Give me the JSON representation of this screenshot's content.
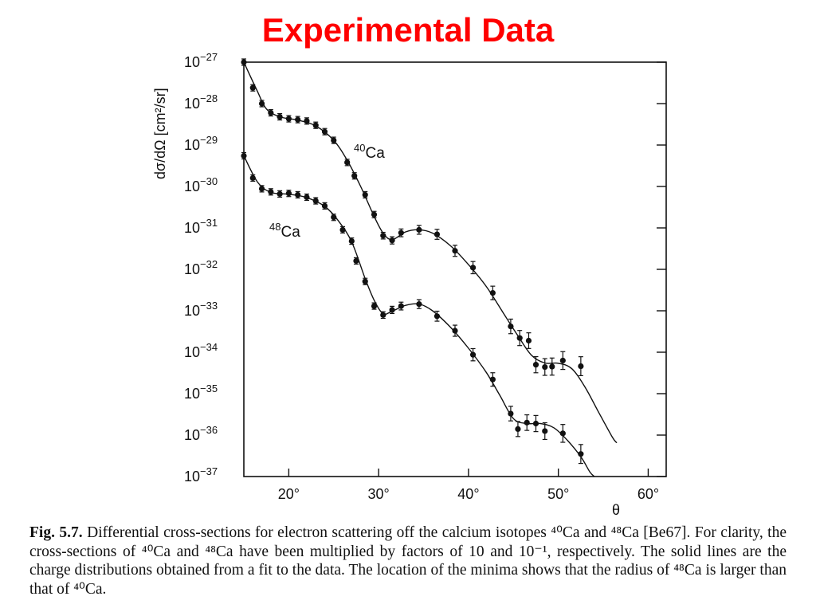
{
  "title": "Experimental Data",
  "caption": {
    "label": "Fig. 5.7.",
    "text": "Differential cross-sections for electron scattering off the calcium isotopes ⁴⁰Ca and ⁴⁸Ca [Be67]. For clarity, the cross-sections of ⁴⁰Ca and ⁴⁸Ca have been multiplied by factors of 10 and 10⁻¹, respectively. The solid lines are the charge distributions obtained from a fit to the data. The location of the minima shows that the radius of ⁴⁸Ca is larger than that of ⁴⁰Ca."
  },
  "chart_data": {
    "type": "scatter",
    "title": "Experimental Data",
    "xlabel": "θ",
    "ylabel": "dσ/dΩ [cm²/sr]",
    "xlim": [
      15,
      62
    ],
    "ylim_log10": [
      -37,
      -27
    ],
    "yscale": "log",
    "x_ticks": [
      20,
      30,
      40,
      50,
      60
    ],
    "x_tick_labels": [
      "20°",
      "30°",
      "40°",
      "50°",
      "60°"
    ],
    "y_ticks_log10": [
      -27,
      -28,
      -29,
      -30,
      -31,
      -32,
      -33,
      -34,
      -35,
      -36,
      -37
    ],
    "y_tick_labels": [
      {
        "base": "10",
        "exp": "−27"
      },
      {
        "base": "10",
        "exp": "−28"
      },
      {
        "base": "10",
        "exp": "−29"
      },
      {
        "base": "10",
        "exp": "−30"
      },
      {
        "base": "10",
        "exp": "−31"
      },
      {
        "base": "10",
        "exp": "−32"
      },
      {
        "base": "10",
        "exp": "−33"
      },
      {
        "base": "10",
        "exp": "−34"
      },
      {
        "base": "10",
        "exp": "−35"
      },
      {
        "base": "10",
        "exp": "−36"
      },
      {
        "base": "10",
        "exp": "−37"
      }
    ],
    "grid": false,
    "series": [
      {
        "name": "⁴⁰Ca",
        "label_mass": "40",
        "label_element": "Ca",
        "points": [
          {
            "x": 15.0,
            "y": 1e-27
          },
          {
            "x": 16.0,
            "y": 2.4e-28
          },
          {
            "x": 17.0,
            "y": 1e-28
          },
          {
            "x": 18.0,
            "y": 6e-29
          },
          {
            "x": 19.0,
            "y": 4.8e-29
          },
          {
            "x": 20.0,
            "y": 4.3e-29
          },
          {
            "x": 21.0,
            "y": 4.1e-29
          },
          {
            "x": 22.0,
            "y": 3.8e-29
          },
          {
            "x": 23.0,
            "y": 3e-29
          },
          {
            "x": 24.0,
            "y": 2.1e-29
          },
          {
            "x": 25.0,
            "y": 1.3e-29
          },
          {
            "x": 26.5,
            "y": 3.8e-30
          },
          {
            "x": 27.3,
            "y": 1.8e-30
          },
          {
            "x": 28.5,
            "y": 6.3e-31
          },
          {
            "x": 29.5,
            "y": 2.1e-31
          },
          {
            "x": 30.5,
            "y": 6.5e-32
          },
          {
            "x": 31.5,
            "y": 5e-32
          },
          {
            "x": 32.5,
            "y": 7.6e-32
          },
          {
            "x": 34.5,
            "y": 9e-32
          },
          {
            "x": 36.5,
            "y": 7e-32
          },
          {
            "x": 38.5,
            "y": 2.8e-32
          },
          {
            "x": 40.5,
            "y": 1.1e-32
          },
          {
            "x": 42.7,
            "y": 2.7e-33
          },
          {
            "x": 44.7,
            "y": 4.2e-34
          },
          {
            "x": 45.7,
            "y": 2.2e-34
          },
          {
            "x": 46.7,
            "y": 1.9e-34
          },
          {
            "x": 47.5,
            "y": 5e-35
          },
          {
            "x": 48.5,
            "y": 4.4e-35
          },
          {
            "x": 49.3,
            "y": 4.5e-35
          },
          {
            "x": 50.5,
            "y": 6.3e-35
          },
          {
            "x": 52.5,
            "y": 4.6e-35
          }
        ],
        "fit": [
          {
            "x": 15.0,
            "y": 1e-27
          },
          {
            "x": 16.5,
            "y": 2e-28
          },
          {
            "x": 17.5,
            "y": 7.5e-29
          },
          {
            "x": 19.0,
            "y": 4.8e-29
          },
          {
            "x": 21.0,
            "y": 4e-29
          },
          {
            "x": 23.0,
            "y": 2.9e-29
          },
          {
            "x": 25.0,
            "y": 1.3e-29
          },
          {
            "x": 26.5,
            "y": 4.3e-30
          },
          {
            "x": 28.0,
            "y": 1e-30
          },
          {
            "x": 29.5,
            "y": 1.9e-31
          },
          {
            "x": 30.5,
            "y": 7.5e-32
          },
          {
            "x": 31.5,
            "y": 5.2e-32
          },
          {
            "x": 33.0,
            "y": 8e-32
          },
          {
            "x": 34.5,
            "y": 9e-32
          },
          {
            "x": 36.0,
            "y": 7.5e-32
          },
          {
            "x": 38.0,
            "y": 3.7e-32
          },
          {
            "x": 40.0,
            "y": 1.3e-32
          },
          {
            "x": 42.0,
            "y": 3.8e-33
          },
          {
            "x": 44.0,
            "y": 8e-34
          },
          {
            "x": 45.5,
            "y": 2.5e-34
          },
          {
            "x": 47.0,
            "y": 8.5e-35
          },
          {
            "x": 48.5,
            "y": 5.5e-35
          },
          {
            "x": 50.0,
            "y": 5.4e-35
          },
          {
            "x": 51.5,
            "y": 4e-35
          },
          {
            "x": 53.0,
            "y": 1.4e-35
          },
          {
            "x": 54.5,
            "y": 3.5e-36
          },
          {
            "x": 56.0,
            "y": 9e-37
          },
          {
            "x": 56.5,
            "y": 6.5e-37
          }
        ]
      },
      {
        "name": "⁴⁸Ca",
        "label_mass": "48",
        "label_element": "Ca",
        "points": [
          {
            "x": 15.0,
            "y": 5.5e-30
          },
          {
            "x": 16.0,
            "y": 1.6e-30
          },
          {
            "x": 17.0,
            "y": 8.8e-31
          },
          {
            "x": 18.0,
            "y": 7.4e-31
          },
          {
            "x": 19.0,
            "y": 6.6e-31
          },
          {
            "x": 20.0,
            "y": 6.8e-31
          },
          {
            "x": 21.0,
            "y": 6.3e-31
          },
          {
            "x": 22.0,
            "y": 5.5e-31
          },
          {
            "x": 23.0,
            "y": 4.5e-31
          },
          {
            "x": 24.0,
            "y": 3.4e-31
          },
          {
            "x": 25.0,
            "y": 1.8e-31
          },
          {
            "x": 26.0,
            "y": 9e-32
          },
          {
            "x": 27.0,
            "y": 4.8e-32
          },
          {
            "x": 27.5,
            "y": 1.6e-32
          },
          {
            "x": 28.5,
            "y": 5.1e-33
          },
          {
            "x": 29.5,
            "y": 1.3e-33
          },
          {
            "x": 30.5,
            "y": 7.9e-34
          },
          {
            "x": 31.5,
            "y": 1.05e-33
          },
          {
            "x": 32.5,
            "y": 1.3e-33
          },
          {
            "x": 34.5,
            "y": 1.45e-33
          },
          {
            "x": 36.5,
            "y": 7.4e-34
          },
          {
            "x": 38.5,
            "y": 3.3e-34
          },
          {
            "x": 40.5,
            "y": 8.7e-35
          },
          {
            "x": 42.7,
            "y": 2.2e-35
          },
          {
            "x": 44.7,
            "y": 3.3e-36
          },
          {
            "x": 45.5,
            "y": 1.4e-36
          },
          {
            "x": 46.5,
            "y": 2e-36
          },
          {
            "x": 47.5,
            "y": 1.9e-36
          },
          {
            "x": 48.5,
            "y": 1.25e-36
          },
          {
            "x": 50.5,
            "y": 1.1e-36
          },
          {
            "x": 52.5,
            "y": 3.5e-37
          }
        ],
        "fit": [
          {
            "x": 15.0,
            "y": 5.5e-30
          },
          {
            "x": 16.5,
            "y": 1.3e-30
          },
          {
            "x": 18.0,
            "y": 7.2e-31
          },
          {
            "x": 20.0,
            "y": 6.5e-31
          },
          {
            "x": 22.0,
            "y": 5.4e-31
          },
          {
            "x": 24.0,
            "y": 3.3e-31
          },
          {
            "x": 25.5,
            "y": 1.5e-31
          },
          {
            "x": 27.0,
            "y": 4.6e-32
          },
          {
            "x": 28.5,
            "y": 6e-33
          },
          {
            "x": 29.5,
            "y": 1.8e-33
          },
          {
            "x": 30.5,
            "y": 8.5e-34
          },
          {
            "x": 31.5,
            "y": 9.8e-34
          },
          {
            "x": 33.0,
            "y": 1.35e-33
          },
          {
            "x": 34.5,
            "y": 1.45e-33
          },
          {
            "x": 36.0,
            "y": 1e-33
          },
          {
            "x": 38.0,
            "y": 4e-34
          },
          {
            "x": 40.0,
            "y": 1.25e-34
          },
          {
            "x": 42.0,
            "y": 3.2e-35
          },
          {
            "x": 43.5,
            "y": 9e-36
          },
          {
            "x": 45.0,
            "y": 2.5e-36
          },
          {
            "x": 46.5,
            "y": 1.9e-36
          },
          {
            "x": 48.0,
            "y": 1.9e-36
          },
          {
            "x": 49.5,
            "y": 1.5e-36
          },
          {
            "x": 51.0,
            "y": 7.5e-37
          },
          {
            "x": 52.5,
            "y": 3e-37
          },
          {
            "x": 53.5,
            "y": 1.3e-37
          },
          {
            "x": 54.0,
            "y": 1e-37
          }
        ]
      }
    ]
  }
}
